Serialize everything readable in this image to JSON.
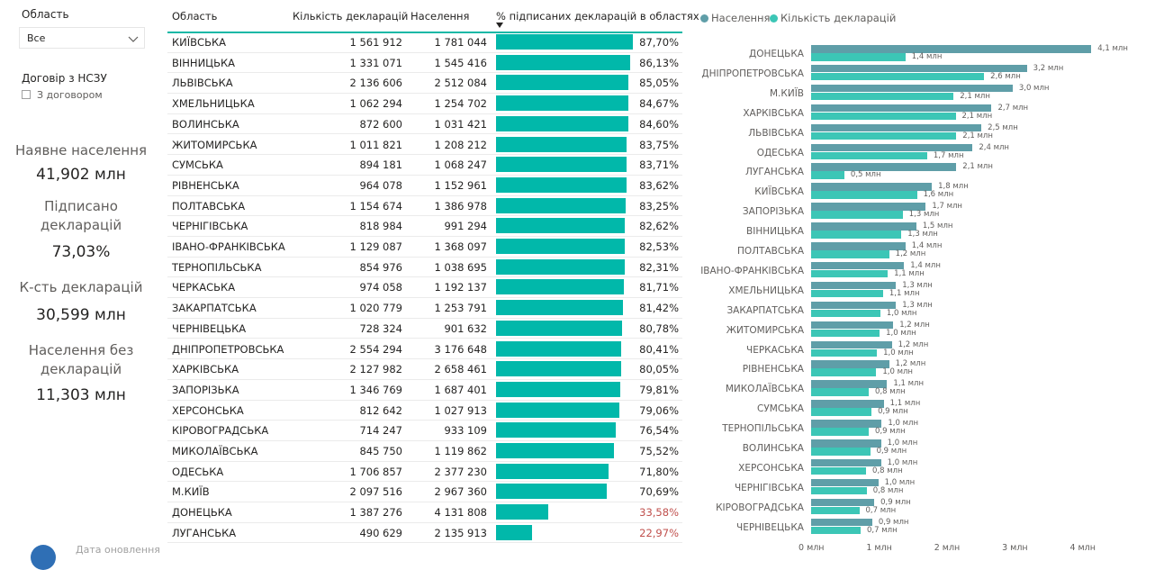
{
  "filters": {
    "region_label": "Область",
    "region_value": "Все",
    "contract_label": "Договір з НСЗУ",
    "contract_option": "З договором"
  },
  "cards": [
    {
      "label": "Наявне населення",
      "value": "41,902 млн"
    },
    {
      "label": "Підписано декларацій",
      "value": "73,03%"
    },
    {
      "label": "К-сть декларацій",
      "value": "30,599 млн"
    },
    {
      "label": "Населення без декларацій",
      "value": "11,303 млн"
    }
  ],
  "table": {
    "headers": [
      "Область",
      "Кількість декларацій",
      "Населення",
      "% підписаних декларацій в областях"
    ],
    "rows": [
      {
        "name": "КИЇВСЬКА",
        "decl": "1 561 912",
        "pop": "1 781 044",
        "pct": "87,70%",
        "v": 87.7
      },
      {
        "name": "ВІННИЦЬКА",
        "decl": "1 331 071",
        "pop": "1 545 416",
        "pct": "86,13%",
        "v": 86.13
      },
      {
        "name": "ЛЬВІВСЬКА",
        "decl": "2 136 606",
        "pop": "2 512 084",
        "pct": "85,05%",
        "v": 85.05
      },
      {
        "name": "ХМЕЛЬНИЦЬКА",
        "decl": "1 062 294",
        "pop": "1 254 702",
        "pct": "84,67%",
        "v": 84.67
      },
      {
        "name": "ВОЛИНСЬКА",
        "decl": "872 600",
        "pop": "1 031 421",
        "pct": "84,60%",
        "v": 84.6
      },
      {
        "name": "ЖИТОМИРСЬКА",
        "decl": "1 011 821",
        "pop": "1 208 212",
        "pct": "83,75%",
        "v": 83.75
      },
      {
        "name": "СУМСЬКА",
        "decl": "894 181",
        "pop": "1 068 247",
        "pct": "83,71%",
        "v": 83.71
      },
      {
        "name": "РІВНЕНСЬКА",
        "decl": "964 078",
        "pop": "1 152 961",
        "pct": "83,62%",
        "v": 83.62
      },
      {
        "name": "ПОЛТАВСЬКА",
        "decl": "1 154 674",
        "pop": "1 386 978",
        "pct": "83,25%",
        "v": 83.25
      },
      {
        "name": "ЧЕРНІГІВСЬКА",
        "decl": "818 984",
        "pop": "991 294",
        "pct": "82,62%",
        "v": 82.62
      },
      {
        "name": "ІВАНО-ФРАНКІВСЬКА",
        "decl": "1 129 087",
        "pop": "1 368 097",
        "pct": "82,53%",
        "v": 82.53
      },
      {
        "name": "ТЕРНОПІЛЬСЬКА",
        "decl": "854 976",
        "pop": "1 038 695",
        "pct": "82,31%",
        "v": 82.31
      },
      {
        "name": "ЧЕРКАСЬКА",
        "decl": "974 058",
        "pop": "1 192 137",
        "pct": "81,71%",
        "v": 81.71
      },
      {
        "name": "ЗАКАРПАТСЬКА",
        "decl": "1 020 779",
        "pop": "1 253 791",
        "pct": "81,42%",
        "v": 81.42
      },
      {
        "name": "ЧЕРНІВЕЦЬКА",
        "decl": "728 324",
        "pop": "901 632",
        "pct": "80,78%",
        "v": 80.78
      },
      {
        "name": "ДНІПРОПЕТРОВСЬКА",
        "decl": "2 554 294",
        "pop": "3 176 648",
        "pct": "80,41%",
        "v": 80.41
      },
      {
        "name": "ХАРКІВСЬКА",
        "decl": "2 127 982",
        "pop": "2 658 461",
        "pct": "80,05%",
        "v": 80.05
      },
      {
        "name": "ЗАПОРІЗЬКА",
        "decl": "1 346 769",
        "pop": "1 687 401",
        "pct": "79,81%",
        "v": 79.81
      },
      {
        "name": "ХЕРСОНСЬКА",
        "decl": "812 642",
        "pop": "1 027 913",
        "pct": "79,06%",
        "v": 79.06
      },
      {
        "name": "КІРОВОГРАДСЬКА",
        "decl": "714 247",
        "pop": "933 109",
        "pct": "76,54%",
        "v": 76.54
      },
      {
        "name": "МИКОЛАЇВСЬКА",
        "decl": "845 750",
        "pop": "1 119 862",
        "pct": "75,52%",
        "v": 75.52
      },
      {
        "name": "ОДЕСЬКА",
        "decl": "1 706 857",
        "pop": "2 377 230",
        "pct": "71,80%",
        "v": 71.8
      },
      {
        "name": "М.КИЇВ",
        "decl": "2 097 516",
        "pop": "2 967 360",
        "pct": "70,69%",
        "v": 70.69
      },
      {
        "name": "ДОНЕЦЬКА",
        "decl": "1 387 276",
        "pop": "4 131 808",
        "pct": "33,58%",
        "v": 33.58
      },
      {
        "name": "ЛУГАНСЬКА",
        "decl": "490 629",
        "pop": "2 135 913",
        "pct": "22,97%",
        "v": 22.97
      }
    ]
  },
  "footer": {
    "text": "Дата оновлення"
  },
  "colors": {
    "population": "#5f9ea8",
    "declarations": "#3cc6b6",
    "table_bar": "#01b8aa",
    "low_pct": "#c0504d"
  },
  "chart_data": {
    "type": "bar",
    "orientation": "horizontal",
    "title": "",
    "legend": "top-left",
    "categories": [
      "ДОНЕЦЬКА",
      "ДНІПРОПЕТРОВСЬКА",
      "М.КИЇВ",
      "ХАРКІВСЬКА",
      "ЛЬВІВСЬКА",
      "ОДЕСЬКА",
      "ЛУГАНСЬКА",
      "КИЇВСЬКА",
      "ЗАПОРІЗЬКА",
      "ВІННИЦЬКА",
      "ПОЛТАВСЬКА",
      "ІВАНО-ФРАНКІВСЬКА",
      "ХМЕЛЬНИЦЬКА",
      "ЗАКАРПАТСЬКА",
      "ЖИТОМИРСЬКА",
      "ЧЕРКАСЬКА",
      "РІВНЕНСЬКА",
      "МИКОЛАЇВСЬКА",
      "СУМСЬКА",
      "ТЕРНОПІЛЬСЬКА",
      "ВОЛИНСЬКА",
      "ХЕРСОНСЬКА",
      "ЧЕРНІГІВСЬКА",
      "КІРОВОГРАДСЬКА",
      "ЧЕРНІВЕЦЬКА"
    ],
    "series": [
      {
        "name": "Населення",
        "values": [
          4.13,
          3.18,
          2.97,
          2.66,
          2.51,
          2.38,
          2.14,
          1.78,
          1.69,
          1.55,
          1.39,
          1.37,
          1.25,
          1.25,
          1.21,
          1.19,
          1.15,
          1.12,
          1.07,
          1.04,
          1.03,
          1.03,
          0.99,
          0.93,
          0.9
        ],
        "labels": [
          "4,1 млн",
          "3,2 млн",
          "3,0 млн",
          "2,7 млн",
          "2,5 млн",
          "2,4 млн",
          "2,1 млн",
          "1,8 млн",
          "1,7 млн",
          "1,5 млн",
          "1,4 млн",
          "1,4 млн",
          "1,3 млн",
          "1,3 млн",
          "1,2 млн",
          "1,2 млн",
          "1,2 млн",
          "1,1 млн",
          "1,1 млн",
          "1,0 млн",
          "1,0 млн",
          "1,0 млн",
          "1,0 млн",
          "0,9 млн",
          "0,9 млн"
        ]
      },
      {
        "name": "Кількість декларацій",
        "values": [
          1.39,
          2.55,
          2.1,
          2.13,
          2.14,
          1.71,
          0.49,
          1.56,
          1.35,
          1.33,
          1.15,
          1.13,
          1.06,
          1.02,
          1.01,
          0.97,
          0.96,
          0.85,
          0.89,
          0.85,
          0.87,
          0.81,
          0.82,
          0.71,
          0.73
        ],
        "labels": [
          "1,4 млн",
          "2,6 млн",
          "2,1 млн",
          "2,1 млн",
          "2,1 млн",
          "1,7 млн",
          "0,5 млн",
          "1,6 млн",
          "1,3 млн",
          "1,3 млн",
          "1,2 млн",
          "1,1 млн",
          "1,1 млн",
          "1,0 млн",
          "1,0 млн",
          "1,0 млн",
          "1,0 млн",
          "0,8 млн",
          "0,9 млн",
          "0,9 млн",
          "0,9 млн",
          "0,8 млн",
          "0,8 млн",
          "0,7 млн",
          "0,7 млн"
        ]
      }
    ],
    "xlim": [
      0,
      4.2
    ],
    "xticks": [
      0,
      1,
      2,
      3,
      4
    ],
    "xtick_labels": [
      "0 млн",
      "1 млн",
      "2 млн",
      "3 млн",
      "4 млн"
    ]
  }
}
